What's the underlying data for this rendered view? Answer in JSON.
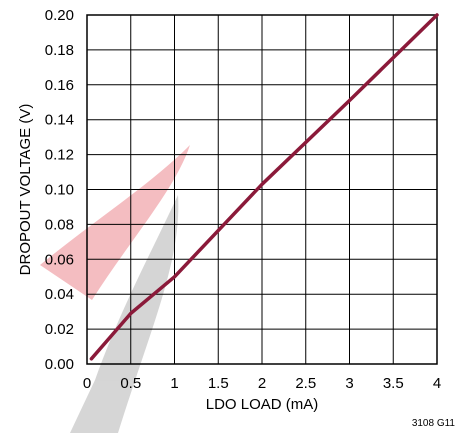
{
  "chart_data": {
    "type": "line",
    "xlabel": "LDO LOAD (mA)",
    "ylabel": "DROPOUT VOLTAGE (V)",
    "xlim": [
      0,
      4
    ],
    "ylim": [
      0,
      0.2
    ],
    "x_ticks": [
      "0",
      "0.5",
      "1",
      "1.5",
      "2",
      "2.5",
      "3",
      "3.5",
      "4"
    ],
    "y_ticks": [
      "0.00",
      "0.02",
      "0.04",
      "0.06",
      "0.08",
      "0.10",
      "0.12",
      "0.14",
      "0.16",
      "0.18",
      "0.20"
    ],
    "grid": true,
    "series": [
      {
        "color": "#8b1a3a",
        "x": [
          0.05,
          0.5,
          1.0,
          2.0,
          3.0,
          4.0
        ],
        "y": [
          0.003,
          0.029,
          0.05,
          0.103,
          0.151,
          0.2
        ]
      }
    ],
    "figure_code": "3108 G11"
  },
  "colors": {
    "line": "#8b1a3a",
    "grid": "#000000",
    "watermark_red": "#e2454f",
    "watermark_gray": "#8a8a8a"
  }
}
